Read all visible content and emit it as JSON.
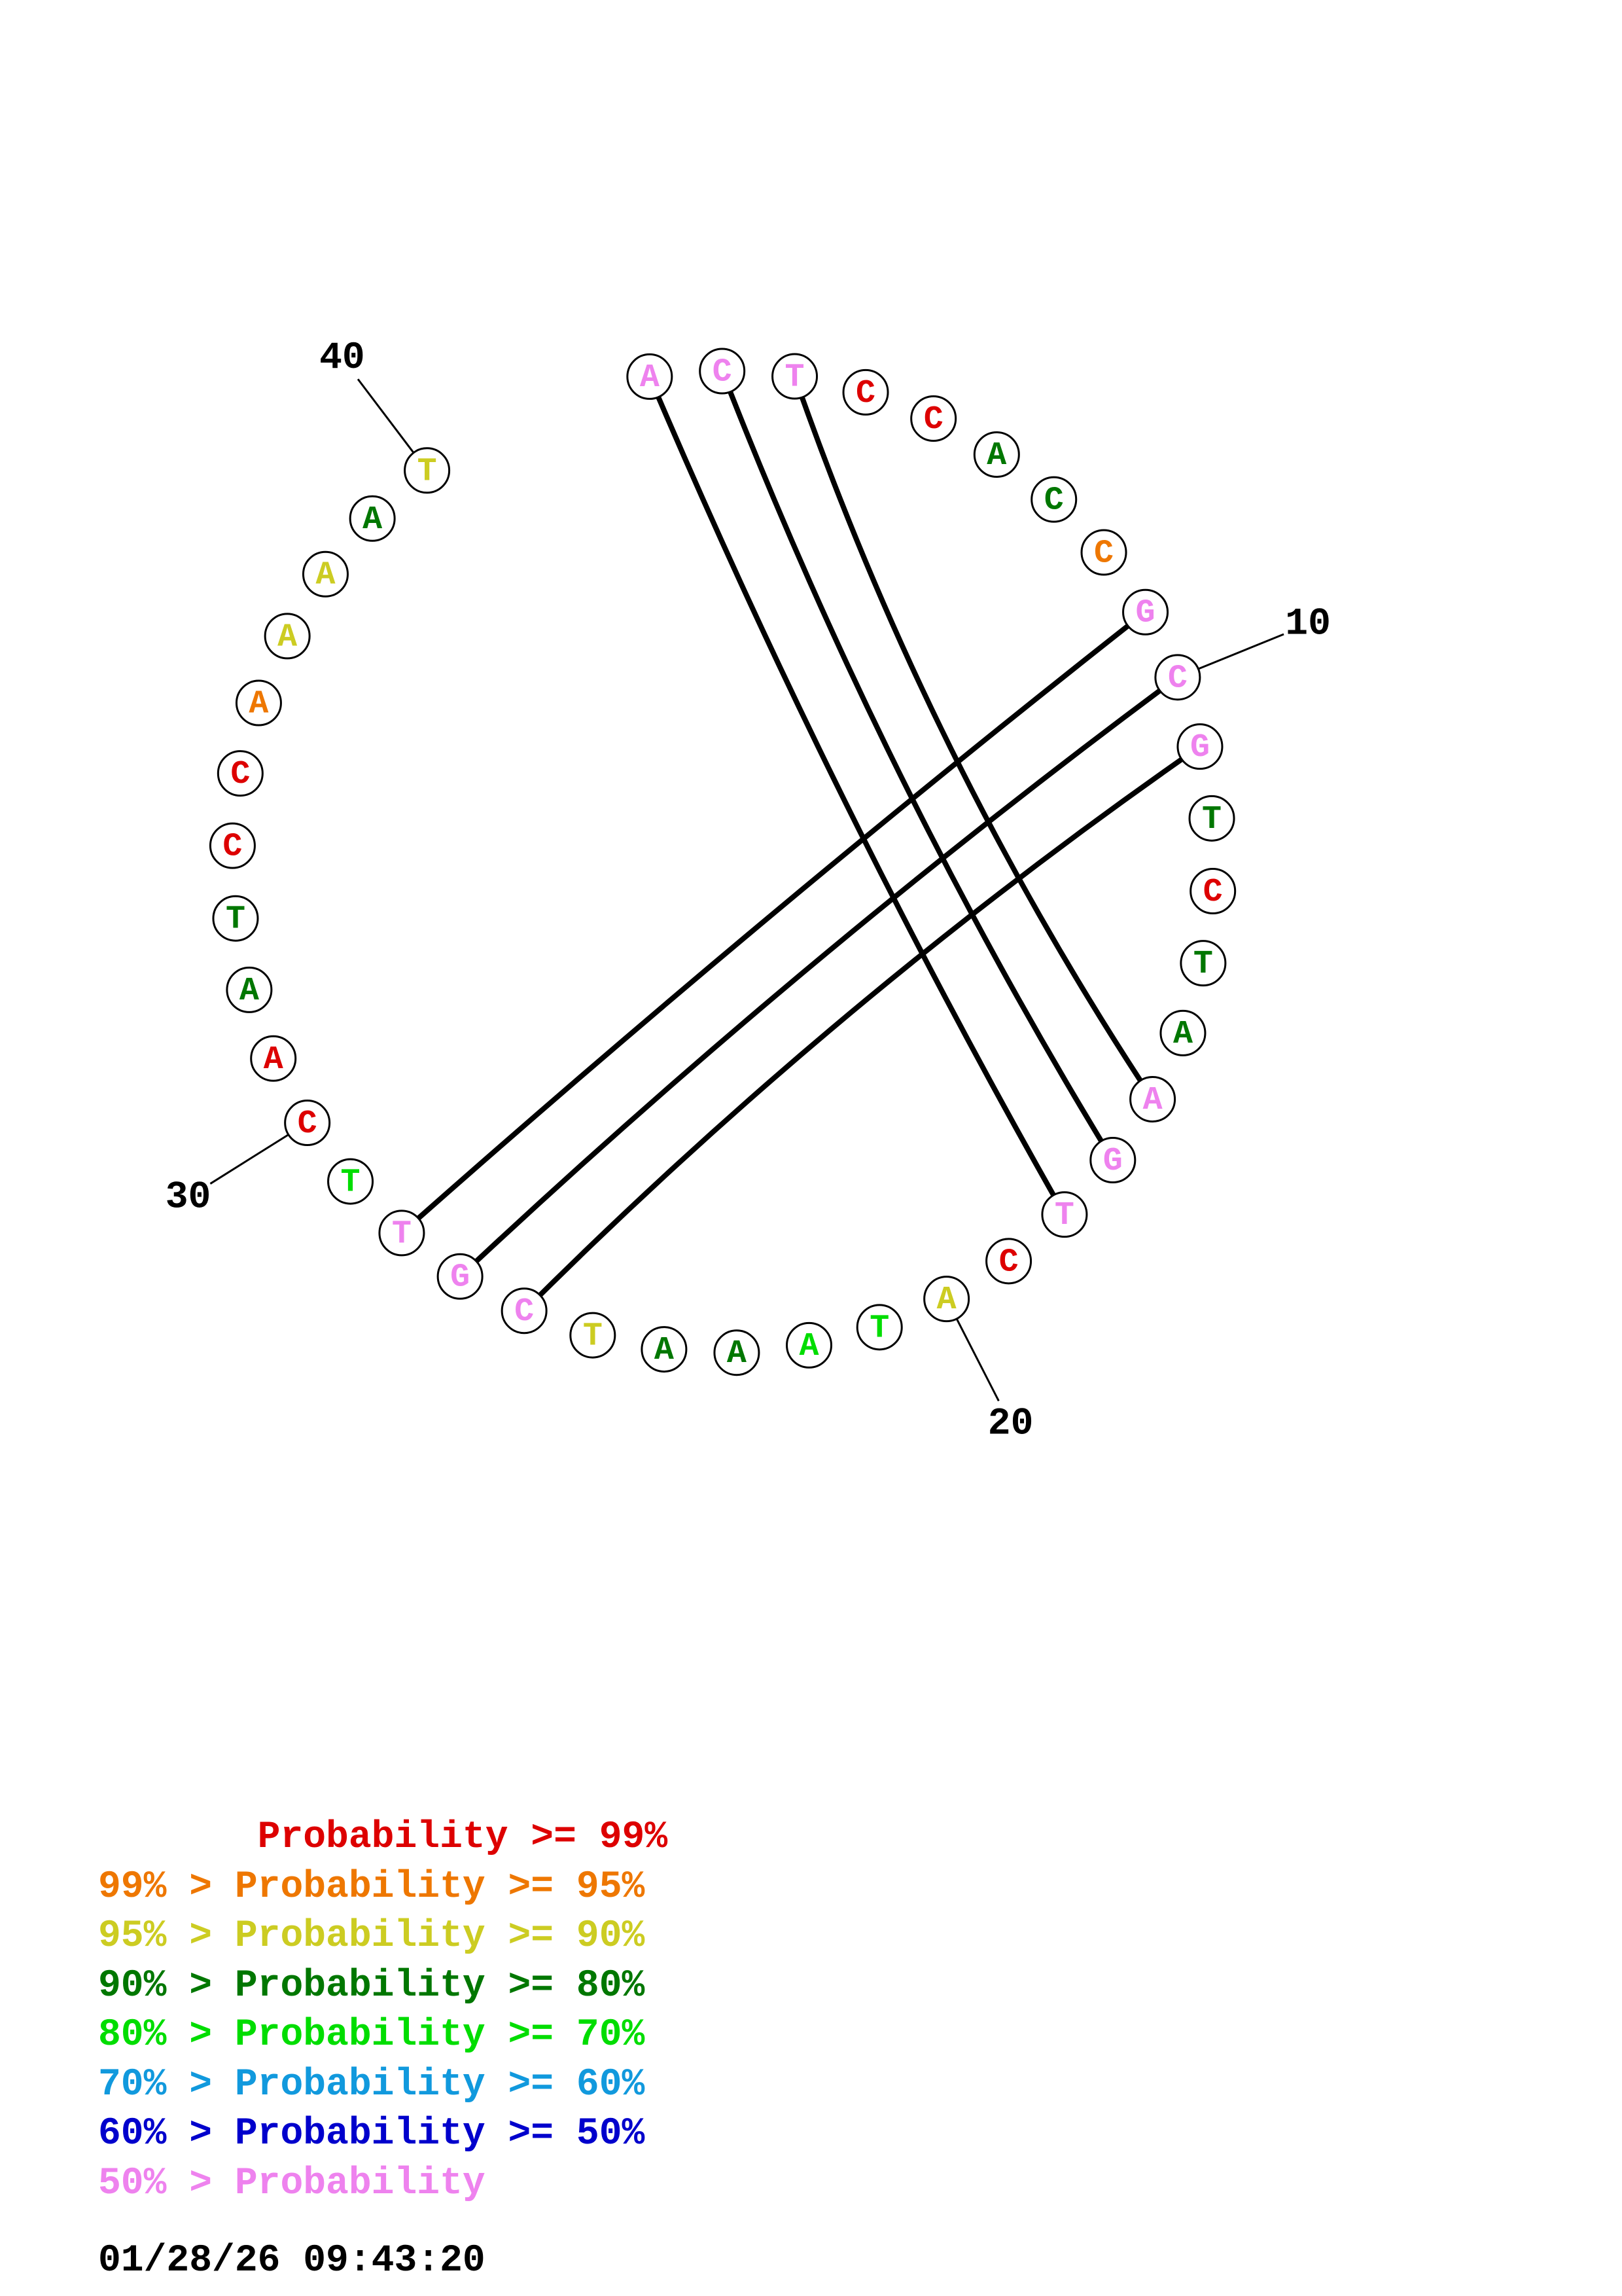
{
  "sequence": [
    "A",
    "C",
    "T",
    "C",
    "C",
    "A",
    "C",
    "C",
    "G",
    "C",
    "G",
    "T",
    "C",
    "T",
    "A",
    "A",
    "G",
    "T",
    "C",
    "A",
    "T",
    "A",
    "A",
    "A",
    "T",
    "C",
    "G",
    "T",
    "T",
    "C",
    "A",
    "A",
    "T",
    "C",
    "C",
    "A",
    "A",
    "A",
    "A",
    "T"
  ],
  "probability_colors": [
    "#ee82ee",
    "#ee82ee",
    "#ee82ee",
    "#dd0000",
    "#dd0000",
    "#007700",
    "#007700",
    "#ee7700",
    "#ee82ee",
    "#ee82ee",
    "#ee82ee",
    "#007700",
    "#dd0000",
    "#007700",
    "#007700",
    "#ee82ee",
    "#ee82ee",
    "#ee82ee",
    "#dd0000",
    "#cccc22",
    "#00dd00",
    "#00dd00",
    "#007700",
    "#007700",
    "#cccc22",
    "#ee82ee",
    "#ee82ee",
    "#ee82ee",
    "#00dd00",
    "#dd0000",
    "#dd0000",
    "#007700",
    "#007700",
    "#dd0000",
    "#dd0000",
    "#ee7700",
    "#cccc22",
    "#cccc22",
    "#007700",
    "#cccc22"
  ],
  "pairs": [
    [
      1,
      18
    ],
    [
      2,
      17
    ],
    [
      3,
      16
    ],
    [
      9,
      28
    ],
    [
      10,
      27
    ],
    [
      11,
      26
    ]
  ],
  "ticks": [
    {
      "index": 10,
      "label": "10"
    },
    {
      "index": 20,
      "label": "20"
    },
    {
      "index": 30,
      "label": "30"
    },
    {
      "index": 40,
      "label": "40"
    }
  ],
  "legend": [
    {
      "text": "       Probability >= 99%",
      "color": "#dd0000"
    },
    {
      "text": "99% > Probability >= 95%",
      "color": "#ee7700"
    },
    {
      "text": "95% > Probability >= 90%",
      "color": "#cccc22"
    },
    {
      "text": "90% > Probability >= 80%",
      "color": "#007700"
    },
    {
      "text": "80% > Probability >= 70%",
      "color": "#00dd00"
    },
    {
      "text": "70% > Probability >= 60%",
      "color": "#1199dd"
    },
    {
      "text": "60% > Probability >= 50%",
      "color": "#0000cc"
    },
    {
      "text": "50% > Probability",
      "color": "#ee82ee"
    }
  ],
  "timestamp": "01/28/26 09:43:20"
}
